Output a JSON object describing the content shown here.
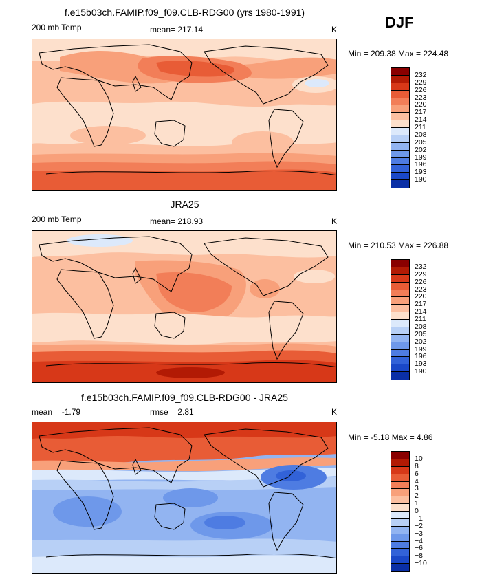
{
  "season": "DJF",
  "colors": {
    "temp_scale": [
      "#8a0000",
      "#b21a04",
      "#d73818",
      "#e85c36",
      "#f27e58",
      "#f8a07a",
      "#fcbfa0",
      "#fde0cc",
      "#ffffff",
      "#dce9fb",
      "#b8d0f6",
      "#92b4f1",
      "#6e98ea",
      "#4e7ce2",
      "#3262d8",
      "#1a48c8",
      "#0a2fa6",
      "#041d86"
    ],
    "diff_scale": [
      "#8a0000",
      "#b21a04",
      "#d73818",
      "#e85c36",
      "#f27e58",
      "#f8a07a",
      "#fcbfa0",
      "#fde0cc",
      "#ffffff",
      "#dce9fb",
      "#b8d0f6",
      "#92b4f1",
      "#6e98ea",
      "#4e7ce2",
      "#3262d8",
      "#1a48c8",
      "#0a2fa6",
      "#041d86"
    ]
  },
  "panels": [
    {
      "title": "f.e15b03ch.FAMIP.f09_f09.CLB-RDG00 (yrs 1980-1991)",
      "left_label": "200 mb Temp",
      "center_label": "mean= 217.14",
      "units": "K",
      "minmax": "Min = 209.38 Max = 224.48",
      "colorbar_labels": [
        "232",
        "229",
        "226",
        "223",
        "220",
        "217",
        "214",
        "211",
        "208",
        "205",
        "202",
        "199",
        "196",
        "193",
        "190"
      ]
    },
    {
      "title": "JRA25",
      "left_label": "200 mb Temp",
      "center_label": "mean= 218.93",
      "units": "K",
      "minmax": "Min = 210.53 Max = 226.88",
      "colorbar_labels": [
        "232",
        "229",
        "226",
        "223",
        "220",
        "217",
        "214",
        "211",
        "208",
        "205",
        "202",
        "199",
        "196",
        "193",
        "190"
      ]
    },
    {
      "title": "f.e15b03ch.FAMIP.f09_f09.CLB-RDG00 - JRA25",
      "left_label": "mean =   -1.79",
      "center_label": "rmse =    2.81",
      "units": "K",
      "minmax": "Min =  -5.18 Max =   4.86",
      "colorbar_labels": [
        "10",
        "8",
        "6",
        "4",
        "3",
        "2",
        "1",
        "0",
        "−1",
        "−2",
        "−3",
        "−4",
        "−6",
        "−8",
        "−10"
      ]
    }
  ]
}
